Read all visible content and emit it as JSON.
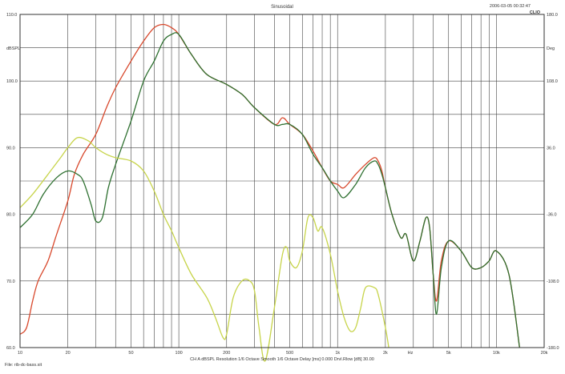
{
  "chart_data": {
    "type": "line",
    "title": "Sinusoidal",
    "timestamp": "2006-03-05 00:32:47",
    "brand": "CLIO",
    "ylabel_left": "dBSPL",
    "ylabel_right": "Deg",
    "x_scale": "log",
    "xlim": [
      10,
      20000
    ],
    "ylim": [
      60,
      110
    ],
    "x_ticks": [
      {
        "v": 10,
        "label": "10"
      },
      {
        "v": 20,
        "label": "20"
      },
      {
        "v": 50,
        "label": "50"
      },
      {
        "v": 100,
        "label": "100"
      },
      {
        "v": 200,
        "label": "200"
      },
      {
        "v": 500,
        "label": "500"
      },
      {
        "v": 1000,
        "label": "1k"
      },
      {
        "v": 2000,
        "label": "2k"
      },
      {
        "v": 5000,
        "label": "5k"
      },
      {
        "v": 10000,
        "label": "10k"
      },
      {
        "v": 20000,
        "label": "20k"
      }
    ],
    "x_unit_label": "Hz",
    "left_ticks": [
      {
        "v": 110,
        "label": "110.0"
      },
      {
        "v": 100,
        "label": "100.0"
      },
      {
        "v": 90,
        "label": "90.0"
      },
      {
        "v": 80,
        "label": "80.0"
      },
      {
        "v": 70,
        "label": "70.0"
      },
      {
        "v": 60,
        "label": "60.0"
      }
    ],
    "right_ticks": [
      {
        "v": 110,
        "label": "180.0"
      },
      {
        "v": 100,
        "label": "108.0"
      },
      {
        "v": 90,
        "label": "36.0"
      },
      {
        "v": 80,
        "label": "-36.0"
      },
      {
        "v": 70,
        "label": "-108.0"
      },
      {
        "v": 60,
        "label": "-180.0"
      }
    ],
    "grid": true,
    "series": [
      {
        "color": "#d8482c",
        "x": [
          10,
          11,
          12,
          13,
          15,
          17,
          20,
          22,
          25,
          30,
          35,
          40,
          50,
          60,
          70,
          80,
          90,
          100,
          120,
          150,
          200,
          250,
          300,
          400,
          450,
          500,
          600,
          700,
          800,
          900,
          1000,
          1100,
          1300,
          1500,
          1700,
          1800,
          1900,
          2000,
          2200,
          2500,
          2700,
          3000,
          3300,
          3600,
          3800,
          4000,
          4200,
          4500,
          5000,
          6000,
          7000,
          8000,
          9000,
          10000,
          12000,
          14000
        ],
        "y": [
          62,
          63,
          67,
          70,
          73,
          77,
          82,
          86,
          89,
          92,
          96,
          99,
          103,
          106,
          108,
          108.5,
          108,
          107,
          104,
          101,
          99.5,
          98,
          96,
          93.5,
          94.5,
          93.5,
          92,
          89.5,
          87,
          85,
          84.5,
          84,
          86,
          87.5,
          88.5,
          88,
          86.5,
          84,
          80,
          76.5,
          77,
          73,
          76,
          79.5,
          78,
          71,
          67,
          73,
          76,
          74.5,
          72,
          72,
          73,
          74.5,
          71,
          60
        ]
      },
      {
        "color": "#2e7030",
        "x": [
          10,
          12,
          14,
          17,
          20,
          23,
          25,
          28,
          30,
          33,
          36,
          40,
          50,
          60,
          70,
          80,
          90,
          100,
          120,
          150,
          200,
          250,
          300,
          400,
          450,
          500,
          600,
          700,
          800,
          900,
          1000,
          1100,
          1300,
          1500,
          1700,
          1800,
          1900,
          2000,
          2200,
          2500,
          2700,
          3000,
          3300,
          3600,
          3800,
          4000,
          4200,
          4500,
          5000,
          6000,
          7000,
          8000,
          9000,
          10000,
          12000,
          14000
        ],
        "y": [
          78,
          80,
          83,
          85.5,
          86.5,
          86,
          85,
          81.5,
          79,
          79.5,
          84,
          87.5,
          94,
          100,
          103,
          106,
          107,
          107,
          104,
          101,
          99.5,
          98,
          96,
          93.5,
          93.5,
          93.5,
          92,
          89,
          87,
          85,
          83.5,
          82.5,
          84.5,
          87,
          88,
          87.5,
          86,
          84,
          80,
          76.5,
          77,
          73,
          76,
          79.5,
          78,
          71,
          65,
          72,
          76,
          74.5,
          72,
          72,
          73,
          74.5,
          71,
          60
        ]
      },
      {
        "color": "#c7d44a",
        "x": [
          10,
          12,
          15,
          18,
          20,
          23,
          27,
          30,
          35,
          40,
          50,
          60,
          70,
          80,
          90,
          100,
          120,
          150,
          170,
          190,
          200,
          220,
          250,
          280,
          300,
          320,
          350,
          400,
          450,
          480,
          500,
          550,
          600,
          650,
          700,
          750,
          800,
          900,
          1000,
          1100,
          1200,
          1300,
          1400,
          1500,
          1700,
          1800,
          2000,
          2100
        ],
        "y": [
          81,
          83,
          86,
          88.5,
          90,
          91.5,
          91,
          90,
          89,
          88.5,
          88,
          86.5,
          83.5,
          80,
          77.5,
          75,
          71,
          67.5,
          64.5,
          61.5,
          62,
          67.5,
          70,
          70,
          68.5,
          63,
          58,
          66,
          74,
          75,
          73,
          72,
          74.5,
          79.5,
          79.5,
          77.5,
          78,
          74,
          68.5,
          64.5,
          62.5,
          63,
          66,
          69,
          69,
          68,
          63,
          60
        ]
      }
    ]
  },
  "footer": {
    "file": "File: rib-dc-bass.sit",
    "info": "CH A    dBSPL   Resolution 1/6 Octave   Smooth 1/6 Octave   Delay [ms] 0.000   Drvl.Rlow [dB] 30.00"
  }
}
